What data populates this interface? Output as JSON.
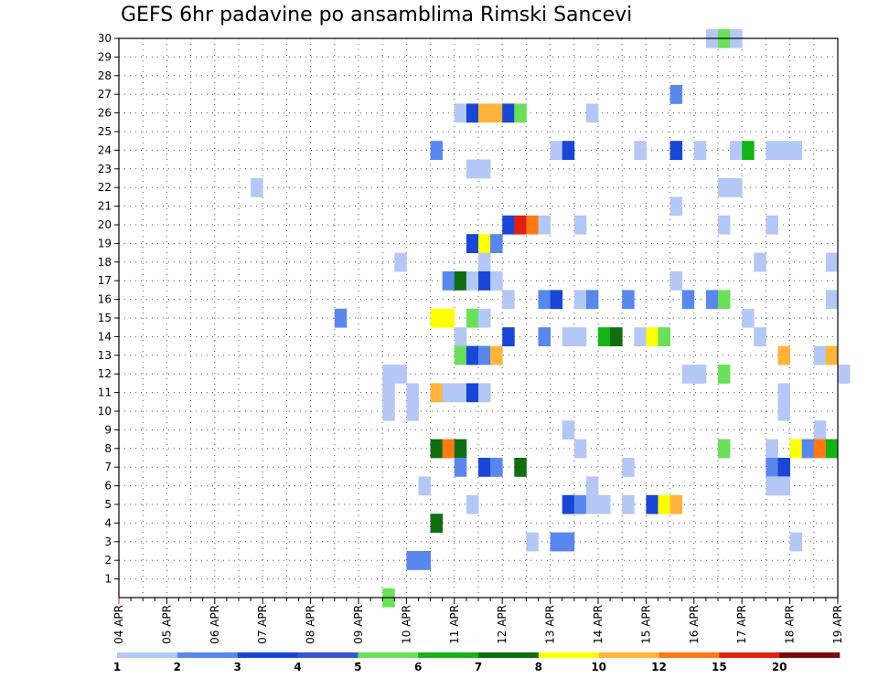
{
  "chart_data": {
    "type": "heatmap",
    "title": "GEFS 6hr padavine po ansamblima Rimski Sancevi",
    "x_tick_labels": [
      "04 APR",
      "05 APR",
      "06 APR",
      "07 APR",
      "08 APR",
      "09 APR",
      "10 APR",
      "11 APR",
      "12 APR",
      "13 APR",
      "14 APR",
      "15 APR",
      "16 APR",
      "17 APR",
      "18 APR",
      "19 APR"
    ],
    "x_range": [
      "04 APR 00h",
      "19 APR 00h"
    ],
    "x_step_hours": 6,
    "y_tick_labels": [
      1,
      2,
      3,
      4,
      5,
      6,
      7,
      8,
      9,
      10,
      11,
      12,
      13,
      14,
      15,
      16,
      17,
      18,
      19,
      20,
      21,
      22,
      23,
      24,
      25,
      26,
      27,
      28,
      29,
      30
    ],
    "y_range": [
      0,
      30
    ],
    "grid": true,
    "legend_placement": "bottom",
    "legend": {
      "labels": [
        "1",
        "2",
        "3",
        "4",
        "5",
        "6",
        "7",
        "8",
        "10",
        "12",
        "15",
        "20"
      ],
      "colors": [
        "#b4c8f5",
        "#5a87ec",
        "#1a46d6",
        "#3456d4",
        "#6ae05a",
        "#16b316",
        "#0f6e10",
        "#ffff00",
        "#ffb43c",
        "#ff7814",
        "#e02010",
        "#7a0a0a"
      ]
    },
    "cells": [
      {
        "member": 30,
        "t": 49,
        "c": 1
      },
      {
        "member": 30,
        "t": 50,
        "c": 5
      },
      {
        "member": 30,
        "t": 51,
        "c": 1
      },
      {
        "member": 27,
        "t": 46,
        "c": 2
      },
      {
        "member": 26,
        "t": 28,
        "c": 1
      },
      {
        "member": 26,
        "t": 29,
        "c": 3
      },
      {
        "member": 26,
        "t": 30,
        "c": 9
      },
      {
        "member": 26,
        "t": 31,
        "c": 9
      },
      {
        "member": 26,
        "t": 32,
        "c": 3
      },
      {
        "member": 26,
        "t": 33,
        "c": 5
      },
      {
        "member": 26,
        "t": 39,
        "c": 1
      },
      {
        "member": 24,
        "t": 26,
        "c": 2
      },
      {
        "member": 24,
        "t": 36,
        "c": 1
      },
      {
        "member": 24,
        "t": 37,
        "c": 3
      },
      {
        "member": 24,
        "t": 43,
        "c": 1
      },
      {
        "member": 24,
        "t": 46,
        "c": 3
      },
      {
        "member": 24,
        "t": 48,
        "c": 1
      },
      {
        "member": 24,
        "t": 51,
        "c": 1
      },
      {
        "member": 24,
        "t": 52,
        "c": 6
      },
      {
        "member": 24,
        "t": 54,
        "c": 1
      },
      {
        "member": 24,
        "t": 55,
        "c": 1
      },
      {
        "member": 24,
        "t": 56,
        "c": 1
      },
      {
        "member": 23,
        "t": 29,
        "c": 1
      },
      {
        "member": 23,
        "t": 30,
        "c": 1
      },
      {
        "member": 22,
        "t": 11,
        "c": 1
      },
      {
        "member": 22,
        "t": 50,
        "c": 1
      },
      {
        "member": 22,
        "t": 51,
        "c": 1
      },
      {
        "member": 21,
        "t": 46,
        "c": 1
      },
      {
        "member": 20,
        "t": 32,
        "c": 3
      },
      {
        "member": 20,
        "t": 33,
        "c": 11
      },
      {
        "member": 20,
        "t": 34,
        "c": 10
      },
      {
        "member": 20,
        "t": 35,
        "c": 1
      },
      {
        "member": 20,
        "t": 38,
        "c": 1
      },
      {
        "member": 20,
        "t": 50,
        "c": 1
      },
      {
        "member": 20,
        "t": 54,
        "c": 1
      },
      {
        "member": 19,
        "t": 29,
        "c": 3
      },
      {
        "member": 19,
        "t": 30,
        "c": 8
      },
      {
        "member": 19,
        "t": 31,
        "c": 2
      },
      {
        "member": 18,
        "t": 23,
        "c": 1
      },
      {
        "member": 18,
        "t": 30,
        "c": 1
      },
      {
        "member": 18,
        "t": 53,
        "c": 1
      },
      {
        "member": 18,
        "t": 59,
        "c": 1
      },
      {
        "member": 17,
        "t": 27,
        "c": 2
      },
      {
        "member": 17,
        "t": 28,
        "c": 7
      },
      {
        "member": 17,
        "t": 29,
        "c": 1
      },
      {
        "member": 17,
        "t": 30,
        "c": 3
      },
      {
        "member": 17,
        "t": 31,
        "c": 1
      },
      {
        "member": 17,
        "t": 46,
        "c": 1
      },
      {
        "member": 16,
        "t": 32,
        "c": 1
      },
      {
        "member": 16,
        "t": 35,
        "c": 2
      },
      {
        "member": 16,
        "t": 36,
        "c": 3
      },
      {
        "member": 16,
        "t": 38,
        "c": 1
      },
      {
        "member": 16,
        "t": 39,
        "c": 2
      },
      {
        "member": 16,
        "t": 42,
        "c": 2
      },
      {
        "member": 16,
        "t": 47,
        "c": 2
      },
      {
        "member": 16,
        "t": 49,
        "c": 2
      },
      {
        "member": 16,
        "t": 50,
        "c": 5
      },
      {
        "member": 16,
        "t": 59,
        "c": 1
      },
      {
        "member": 15,
        "t": 18,
        "c": 2
      },
      {
        "member": 15,
        "t": 26,
        "c": 8
      },
      {
        "member": 15,
        "t": 27,
        "c": 8
      },
      {
        "member": 15,
        "t": 29,
        "c": 5
      },
      {
        "member": 15,
        "t": 30,
        "c": 1
      },
      {
        "member": 15,
        "t": 52,
        "c": 1
      },
      {
        "member": 14,
        "t": 28,
        "c": 1
      },
      {
        "member": 14,
        "t": 32,
        "c": 3
      },
      {
        "member": 14,
        "t": 35,
        "c": 2
      },
      {
        "member": 14,
        "t": 37,
        "c": 1
      },
      {
        "member": 14,
        "t": 38,
        "c": 1
      },
      {
        "member": 14,
        "t": 40,
        "c": 6
      },
      {
        "member": 14,
        "t": 41,
        "c": 7
      },
      {
        "member": 14,
        "t": 43,
        "c": 1
      },
      {
        "member": 14,
        "t": 44,
        "c": 8
      },
      {
        "member": 14,
        "t": 45,
        "c": 5
      },
      {
        "member": 14,
        "t": 53,
        "c": 1
      },
      {
        "member": 13,
        "t": 28,
        "c": 5
      },
      {
        "member": 13,
        "t": 29,
        "c": 3
      },
      {
        "member": 13,
        "t": 30,
        "c": 2
      },
      {
        "member": 13,
        "t": 31,
        "c": 9
      },
      {
        "member": 13,
        "t": 55,
        "c": 9
      },
      {
        "member": 13,
        "t": 58,
        "c": 1
      },
      {
        "member": 13,
        "t": 59,
        "c": 9
      },
      {
        "member": 12,
        "t": 22,
        "c": 1
      },
      {
        "member": 12,
        "t": 23,
        "c": 1
      },
      {
        "member": 12,
        "t": 47,
        "c": 1
      },
      {
        "member": 12,
        "t": 48,
        "c": 1
      },
      {
        "member": 12,
        "t": 50,
        "c": 5
      },
      {
        "member": 12,
        "t": 60,
        "c": 1
      },
      {
        "member": 11,
        "t": 22,
        "c": 1
      },
      {
        "member": 11,
        "t": 24,
        "c": 1
      },
      {
        "member": 11,
        "t": 26,
        "c": 9
      },
      {
        "member": 11,
        "t": 27,
        "c": 1
      },
      {
        "member": 11,
        "t": 28,
        "c": 1
      },
      {
        "member": 11,
        "t": 29,
        "c": 3
      },
      {
        "member": 11,
        "t": 30,
        "c": 1
      },
      {
        "member": 11,
        "t": 55,
        "c": 1
      },
      {
        "member": 10,
        "t": 22,
        "c": 1
      },
      {
        "member": 10,
        "t": 24,
        "c": 1
      },
      {
        "member": 10,
        "t": 55,
        "c": 1
      },
      {
        "member": 9,
        "t": 37,
        "c": 1
      },
      {
        "member": 9,
        "t": 58,
        "c": 1
      },
      {
        "member": 8,
        "t": 26,
        "c": 7
      },
      {
        "member": 8,
        "t": 27,
        "c": 10
      },
      {
        "member": 8,
        "t": 28,
        "c": 7
      },
      {
        "member": 8,
        "t": 38,
        "c": 1
      },
      {
        "member": 8,
        "t": 50,
        "c": 5
      },
      {
        "member": 8,
        "t": 54,
        "c": 1
      },
      {
        "member": 8,
        "t": 56,
        "c": 8
      },
      {
        "member": 8,
        "t": 57,
        "c": 2
      },
      {
        "member": 8,
        "t": 58,
        "c": 10
      },
      {
        "member": 8,
        "t": 59,
        "c": 6
      },
      {
        "member": 7,
        "t": 28,
        "c": 2
      },
      {
        "member": 7,
        "t": 30,
        "c": 3
      },
      {
        "member": 7,
        "t": 31,
        "c": 2
      },
      {
        "member": 7,
        "t": 33,
        "c": 7
      },
      {
        "member": 7,
        "t": 42,
        "c": 1
      },
      {
        "member": 7,
        "t": 54,
        "c": 2
      },
      {
        "member": 7,
        "t": 55,
        "c": 3
      },
      {
        "member": 6,
        "t": 25,
        "c": 1
      },
      {
        "member": 6,
        "t": 39,
        "c": 1
      },
      {
        "member": 6,
        "t": 54,
        "c": 1
      },
      {
        "member": 6,
        "t": 55,
        "c": 1
      },
      {
        "member": 5,
        "t": 29,
        "c": 1
      },
      {
        "member": 5,
        "t": 37,
        "c": 3
      },
      {
        "member": 5,
        "t": 38,
        "c": 2
      },
      {
        "member": 5,
        "t": 39,
        "c": 1
      },
      {
        "member": 5,
        "t": 40,
        "c": 1
      },
      {
        "member": 5,
        "t": 42,
        "c": 1
      },
      {
        "member": 5,
        "t": 44,
        "c": 3
      },
      {
        "member": 5,
        "t": 45,
        "c": 8
      },
      {
        "member": 5,
        "t": 46,
        "c": 9
      },
      {
        "member": 4,
        "t": 26,
        "c": 7
      },
      {
        "member": 3,
        "t": 34,
        "c": 1
      },
      {
        "member": 3,
        "t": 36,
        "c": 2
      },
      {
        "member": 3,
        "t": 37,
        "c": 2
      },
      {
        "member": 3,
        "t": 56,
        "c": 1
      },
      {
        "member": 2,
        "t": 24,
        "c": 2
      },
      {
        "member": 2,
        "t": 25,
        "c": 2
      },
      {
        "member": 0,
        "t": 22,
        "c": 5
      }
    ]
  }
}
